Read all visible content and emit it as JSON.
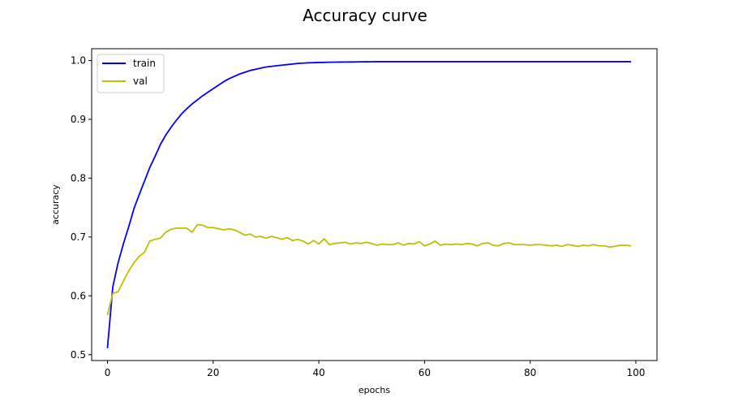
{
  "chart_data": {
    "type": "line",
    "title": "Accuracy curve",
    "xlabel": "epochs",
    "ylabel": "accuracy",
    "xlim": [
      -3,
      104
    ],
    "ylim": [
      0.49,
      1.02
    ],
    "grid": false,
    "legend_position": "upper-left",
    "x_ticks": [
      0,
      20,
      40,
      60,
      80,
      100
    ],
    "y_ticks": [
      0.5,
      0.6,
      0.7,
      0.8,
      0.9,
      1.0
    ],
    "x_tick_labels": [
      "0",
      "20",
      "40",
      "60",
      "80",
      "100"
    ],
    "y_tick_labels": [
      "0.5",
      "0.6",
      "0.7",
      "0.8",
      "0.9",
      "1.0"
    ],
    "series": [
      {
        "name": "train",
        "color": "#0000ff",
        "x": [
          0,
          1,
          2,
          3,
          4,
          5,
          6,
          7,
          8,
          9,
          10,
          11,
          12,
          13,
          14,
          15,
          16,
          17,
          18,
          19,
          20,
          21,
          22,
          23,
          24,
          25,
          26,
          27,
          28,
          29,
          30,
          31,
          32,
          33,
          34,
          35,
          36,
          37,
          38,
          39,
          40,
          41,
          42,
          43,
          44,
          45,
          46,
          47,
          48,
          49,
          50,
          51,
          52,
          53,
          54,
          55,
          56,
          57,
          58,
          59,
          60,
          61,
          62,
          63,
          64,
          65,
          66,
          67,
          68,
          69,
          70,
          71,
          72,
          73,
          74,
          75,
          76,
          77,
          78,
          79,
          80,
          81,
          82,
          83,
          84,
          85,
          86,
          87,
          88,
          89,
          90,
          91,
          92,
          93,
          94,
          95,
          96,
          97,
          98,
          99
        ],
        "y": [
          0.512,
          0.615,
          0.656,
          0.688,
          0.717,
          0.748,
          0.772,
          0.795,
          0.818,
          0.837,
          0.857,
          0.873,
          0.886,
          0.898,
          0.909,
          0.918,
          0.926,
          0.933,
          0.94,
          0.946,
          0.952,
          0.958,
          0.964,
          0.969,
          0.973,
          0.977,
          0.98,
          0.983,
          0.985,
          0.987,
          0.989,
          0.99,
          0.991,
          0.992,
          0.993,
          0.994,
          0.995,
          0.9955,
          0.996,
          0.9963,
          0.9966,
          0.9968,
          0.997,
          0.9972,
          0.9973,
          0.9974,
          0.9975,
          0.9976,
          0.9977,
          0.9978,
          0.9979,
          0.998,
          0.998,
          0.998,
          0.998,
          0.998,
          0.998,
          0.998,
          0.998,
          0.998,
          0.998,
          0.998,
          0.998,
          0.998,
          0.998,
          0.998,
          0.998,
          0.998,
          0.998,
          0.998,
          0.998,
          0.998,
          0.998,
          0.998,
          0.998,
          0.998,
          0.998,
          0.998,
          0.998,
          0.998,
          0.998,
          0.998,
          0.998,
          0.998,
          0.998,
          0.998,
          0.998,
          0.998,
          0.998,
          0.998,
          0.998,
          0.998,
          0.998,
          0.998,
          0.998,
          0.998,
          0.998,
          0.998,
          0.998,
          0.998
        ]
      },
      {
        "name": "val",
        "color": "#bfbf00",
        "x": [
          0,
          1,
          2,
          3,
          4,
          5,
          6,
          7,
          8,
          9,
          10,
          11,
          12,
          13,
          14,
          15,
          16,
          17,
          18,
          19,
          20,
          21,
          22,
          23,
          24,
          25,
          26,
          27,
          28,
          29,
          30,
          31,
          32,
          33,
          34,
          35,
          36,
          37,
          38,
          39,
          40,
          41,
          42,
          43,
          44,
          45,
          46,
          47,
          48,
          49,
          50,
          51,
          52,
          53,
          54,
          55,
          56,
          57,
          58,
          59,
          60,
          61,
          62,
          63,
          64,
          65,
          66,
          67,
          68,
          69,
          70,
          71,
          72,
          73,
          74,
          75,
          76,
          77,
          78,
          79,
          80,
          81,
          82,
          83,
          84,
          85,
          86,
          87,
          88,
          89,
          90,
          91,
          92,
          93,
          94,
          95,
          96,
          97,
          98,
          99
        ],
        "y": [
          0.568,
          0.604,
          0.607,
          0.625,
          0.642,
          0.656,
          0.667,
          0.674,
          0.693,
          0.696,
          0.698,
          0.708,
          0.713,
          0.715,
          0.715,
          0.715,
          0.708,
          0.721,
          0.72,
          0.716,
          0.716,
          0.714,
          0.712,
          0.714,
          0.712,
          0.708,
          0.703,
          0.705,
          0.7,
          0.701,
          0.698,
          0.701,
          0.699,
          0.696,
          0.699,
          0.694,
          0.696,
          0.693,
          0.688,
          0.694,
          0.688,
          0.697,
          0.687,
          0.689,
          0.69,
          0.691,
          0.688,
          0.69,
          0.689,
          0.691,
          0.689,
          0.686,
          0.688,
          0.687,
          0.687,
          0.69,
          0.686,
          0.689,
          0.688,
          0.692,
          0.685,
          0.688,
          0.693,
          0.686,
          0.688,
          0.687,
          0.688,
          0.687,
          0.689,
          0.688,
          0.685,
          0.689,
          0.69,
          0.686,
          0.685,
          0.689,
          0.69,
          0.687,
          0.687,
          0.687,
          0.686,
          0.687,
          0.687,
          0.686,
          0.685,
          0.686,
          0.684,
          0.687,
          0.686,
          0.684,
          0.686,
          0.685,
          0.687,
          0.685,
          0.685,
          0.683,
          0.684,
          0.686,
          0.686,
          0.685
        ]
      }
    ]
  }
}
